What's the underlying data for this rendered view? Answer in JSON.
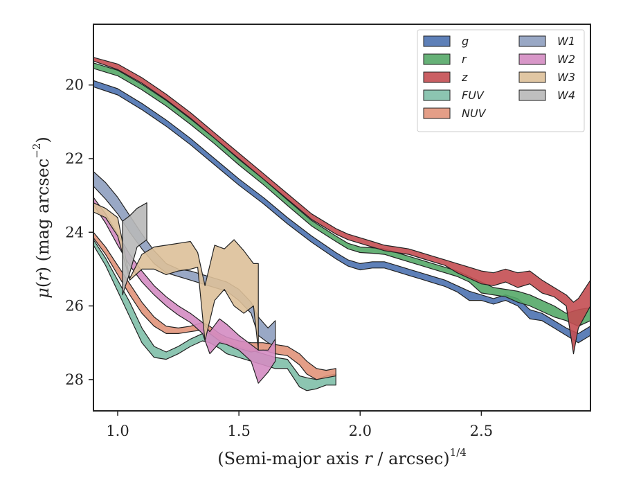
{
  "chart_data": {
    "type": "area",
    "xlabel": "(Semi-major axis r / arcsec)",
    "xlabel_parts": {
      "prefix": "(Semi-major axis ",
      "var": "r",
      "suffix": " / arcsec)",
      "sup": "1/4"
    },
    "ylabel": "μ(r) (mag arcsec−2)",
    "ylabel_parts": {
      "mu": "μ",
      "open": "(",
      "var": "r",
      "close": ") (mag arcsec",
      "sup": "−2",
      "end": ")"
    },
    "xlim": [
      0.9,
      2.95
    ],
    "ylim": [
      28.85,
      18.35
    ],
    "y_inverted": true,
    "x_ticks": [
      {
        "value": 1.0,
        "label": "1.0"
      },
      {
        "value": 1.5,
        "label": "1.5"
      },
      {
        "value": 2.0,
        "label": "2.0"
      },
      {
        "value": 2.5,
        "label": "2.5"
      }
    ],
    "y_ticks": [
      {
        "value": 20,
        "label": "20"
      },
      {
        "value": 22,
        "label": "22"
      },
      {
        "value": 24,
        "label": "24"
      },
      {
        "value": 26,
        "label": "26"
      },
      {
        "value": 28,
        "label": "28"
      }
    ],
    "grid": false,
    "legend_position": "top-right",
    "legend_columns": 2,
    "series": [
      {
        "name": "g",
        "color": "#4c72b0",
        "x": [
          0.9,
          1.0,
          1.1,
          1.2,
          1.3,
          1.4,
          1.5,
          1.6,
          1.7,
          1.8,
          1.9,
          1.95,
          2.0,
          2.05,
          2.1,
          2.15,
          2.2,
          2.25,
          2.3,
          2.35,
          2.4,
          2.45,
          2.5,
          2.55,
          2.6,
          2.65,
          2.7,
          2.75,
          2.8,
          2.85,
          2.9,
          2.95
        ],
        "lo": [
          19.88,
          20.1,
          20.5,
          20.95,
          21.45,
          22.0,
          22.55,
          23.05,
          23.6,
          24.1,
          24.55,
          24.75,
          24.85,
          24.8,
          24.8,
          24.9,
          25.0,
          25.1,
          25.2,
          25.3,
          25.45,
          25.6,
          25.7,
          25.8,
          25.7,
          25.8,
          26.1,
          26.2,
          26.4,
          26.6,
          26.75,
          26.55
        ],
        "hi": [
          20.05,
          20.27,
          20.67,
          21.12,
          21.62,
          22.17,
          22.72,
          23.22,
          23.77,
          24.27,
          24.72,
          24.92,
          25.02,
          24.97,
          24.97,
          25.07,
          25.17,
          25.27,
          25.37,
          25.47,
          25.62,
          25.85,
          25.85,
          25.95,
          25.85,
          26.0,
          26.35,
          26.4,
          26.6,
          26.8,
          27.0,
          26.8
        ]
      },
      {
        "name": "r",
        "color": "#55a868",
        "x": [
          0.9,
          1.0,
          1.1,
          1.2,
          1.3,
          1.4,
          1.5,
          1.6,
          1.7,
          1.8,
          1.9,
          1.95,
          2.0,
          2.05,
          2.1,
          2.15,
          2.2,
          2.25,
          2.3,
          2.35,
          2.4,
          2.45,
          2.5,
          2.55,
          2.6,
          2.65,
          2.7,
          2.75,
          2.8,
          2.85,
          2.9,
          2.95
        ],
        "lo": [
          19.4,
          19.6,
          19.98,
          20.42,
          20.92,
          21.45,
          22.02,
          22.55,
          23.12,
          23.68,
          24.1,
          24.3,
          24.4,
          24.42,
          24.45,
          24.55,
          24.65,
          24.75,
          24.85,
          24.95,
          25.05,
          25.2,
          25.35,
          25.5,
          25.55,
          25.6,
          25.7,
          25.85,
          26.0,
          26.2,
          26.1,
          26.05
        ],
        "hi": [
          19.55,
          19.75,
          20.13,
          20.57,
          21.07,
          21.6,
          22.17,
          22.7,
          23.27,
          23.83,
          24.25,
          24.45,
          24.55,
          24.57,
          24.6,
          24.7,
          24.8,
          24.9,
          25.0,
          25.1,
          25.2,
          25.35,
          25.65,
          25.7,
          25.75,
          25.9,
          26.0,
          26.15,
          26.3,
          26.4,
          26.55,
          26.4
        ]
      },
      {
        "name": "z",
        "color": "#c44e52",
        "x": [
          0.9,
          1.0,
          1.1,
          1.2,
          1.3,
          1.4,
          1.5,
          1.6,
          1.7,
          1.8,
          1.9,
          1.95,
          2.0,
          2.05,
          2.1,
          2.15,
          2.2,
          2.25,
          2.3,
          2.35,
          2.4,
          2.45,
          2.5,
          2.55,
          2.6,
          2.65,
          2.7,
          2.75,
          2.8,
          2.85,
          2.88,
          2.9,
          2.95
        ],
        "lo": [
          19.25,
          19.43,
          19.8,
          20.25,
          20.75,
          21.3,
          21.85,
          22.4,
          22.95,
          23.5,
          23.9,
          24.05,
          24.15,
          24.25,
          24.35,
          24.4,
          24.45,
          24.55,
          24.65,
          24.75,
          24.85,
          24.95,
          25.05,
          25.1,
          25.0,
          25.1,
          25.05,
          25.3,
          25.5,
          25.7,
          25.9,
          25.8,
          25.3
        ],
        "hi": [
          19.35,
          19.58,
          19.95,
          20.4,
          20.9,
          21.45,
          22.0,
          22.55,
          23.1,
          23.65,
          24.05,
          24.2,
          24.3,
          24.4,
          24.5,
          24.55,
          24.6,
          24.7,
          24.8,
          24.9,
          25.1,
          25.25,
          25.4,
          25.45,
          25.35,
          25.5,
          25.4,
          25.65,
          25.75,
          26.0,
          27.3,
          26.6,
          26.0
        ]
      },
      {
        "name": "FUV",
        "color": "#7fbfa8",
        "x": [
          0.9,
          0.95,
          1.0,
          1.05,
          1.1,
          1.15,
          1.2,
          1.25,
          1.3,
          1.35,
          1.38,
          1.42,
          1.45,
          1.5,
          1.55,
          1.6,
          1.65,
          1.7,
          1.75,
          1.78,
          1.82,
          1.86,
          1.9
        ],
        "lo": [
          24.2,
          24.7,
          25.3,
          25.9,
          26.6,
          27.1,
          27.25,
          27.1,
          26.9,
          26.75,
          26.7,
          26.8,
          26.95,
          27.1,
          27.2,
          27.3,
          27.4,
          27.45,
          27.9,
          27.95,
          28.0,
          27.9,
          27.85
        ],
        "hi": [
          24.35,
          24.9,
          25.6,
          26.3,
          27.0,
          27.4,
          27.45,
          27.3,
          27.1,
          26.95,
          27.0,
          27.15,
          27.3,
          27.4,
          27.5,
          27.6,
          27.7,
          27.7,
          28.2,
          28.3,
          28.25,
          28.15,
          28.15
        ]
      },
      {
        "name": "NUV",
        "color": "#e1937a",
        "x": [
          0.9,
          0.95,
          1.0,
          1.05,
          1.1,
          1.15,
          1.2,
          1.25,
          1.3,
          1.35,
          1.38,
          1.42,
          1.45,
          1.5,
          1.55,
          1.6,
          1.65,
          1.7,
          1.75,
          1.78,
          1.82,
          1.86,
          1.9
        ],
        "lo": [
          24.0,
          24.4,
          24.9,
          25.4,
          25.9,
          26.3,
          26.55,
          26.6,
          26.55,
          26.45,
          26.55,
          26.75,
          26.85,
          26.95,
          27.0,
          27.0,
          27.05,
          27.1,
          27.3,
          27.5,
          27.7,
          27.75,
          27.7
        ],
        "hi": [
          24.15,
          24.6,
          25.15,
          25.7,
          26.2,
          26.55,
          26.75,
          26.75,
          26.7,
          26.65,
          26.75,
          26.95,
          27.05,
          27.15,
          27.25,
          27.2,
          27.3,
          27.35,
          27.6,
          27.85,
          28.0,
          27.95,
          27.9
        ]
      },
      {
        "name": "W1",
        "color": "#8e9ebf",
        "x": [
          0.9,
          0.95,
          1.0,
          1.05,
          1.1,
          1.15,
          1.2,
          1.25,
          1.3,
          1.35,
          1.4,
          1.45,
          1.5,
          1.55,
          1.58,
          1.62,
          1.65
        ],
        "lo": [
          22.35,
          22.65,
          23.05,
          23.55,
          24.05,
          24.5,
          24.85,
          25.0,
          25.05,
          25.15,
          25.25,
          25.35,
          25.55,
          25.9,
          26.3,
          26.6,
          26.4
        ],
        "hi": [
          22.75,
          23.1,
          23.5,
          24.0,
          24.45,
          24.85,
          25.1,
          25.2,
          25.3,
          25.4,
          25.5,
          25.6,
          25.85,
          26.2,
          26.8,
          27.0,
          27.1
        ]
      },
      {
        "name": "W2",
        "color": "#d48cc2",
        "x": [
          0.9,
          0.95,
          1.0,
          1.05,
          1.1,
          1.15,
          1.2,
          1.25,
          1.3,
          1.35,
          1.38,
          1.42,
          1.45,
          1.5,
          1.55,
          1.58,
          1.62,
          1.65
        ],
        "lo": [
          23.05,
          23.5,
          24.05,
          24.6,
          25.05,
          25.45,
          25.75,
          26.0,
          26.2,
          26.45,
          26.7,
          26.35,
          26.5,
          26.8,
          27.05,
          27.2,
          27.2,
          26.9
        ],
        "hi": [
          23.25,
          23.75,
          24.35,
          24.9,
          25.35,
          25.7,
          26.0,
          26.25,
          26.45,
          26.75,
          27.3,
          27.0,
          27.05,
          27.2,
          27.5,
          28.1,
          27.8,
          27.5
        ]
      },
      {
        "name": "W3",
        "color": "#ddc099",
        "x": [
          0.9,
          0.95,
          1.0,
          1.05,
          1.1,
          1.15,
          1.2,
          1.25,
          1.3,
          1.33,
          1.36,
          1.4,
          1.44,
          1.48,
          1.52,
          1.56,
          1.58
        ],
        "lo": [
          23.2,
          23.35,
          23.6,
          25.25,
          24.6,
          24.4,
          24.35,
          24.3,
          24.25,
          24.55,
          25.45,
          24.35,
          24.45,
          24.2,
          24.5,
          24.85,
          24.85
        ],
        "hi": [
          23.45,
          23.6,
          24.1,
          25.3,
          25.0,
          25.0,
          25.15,
          25.05,
          25.0,
          24.95,
          26.95,
          25.85,
          25.55,
          26.0,
          26.2,
          26.0,
          27.2
        ]
      },
      {
        "name": "W4",
        "color": "#b8b8b8",
        "x": [
          1.02,
          1.05,
          1.08,
          1.12
        ],
        "lo": [
          23.7,
          23.55,
          23.35,
          23.2
        ],
        "hi": [
          25.7,
          25.1,
          24.4,
          24.2
        ]
      }
    ]
  }
}
